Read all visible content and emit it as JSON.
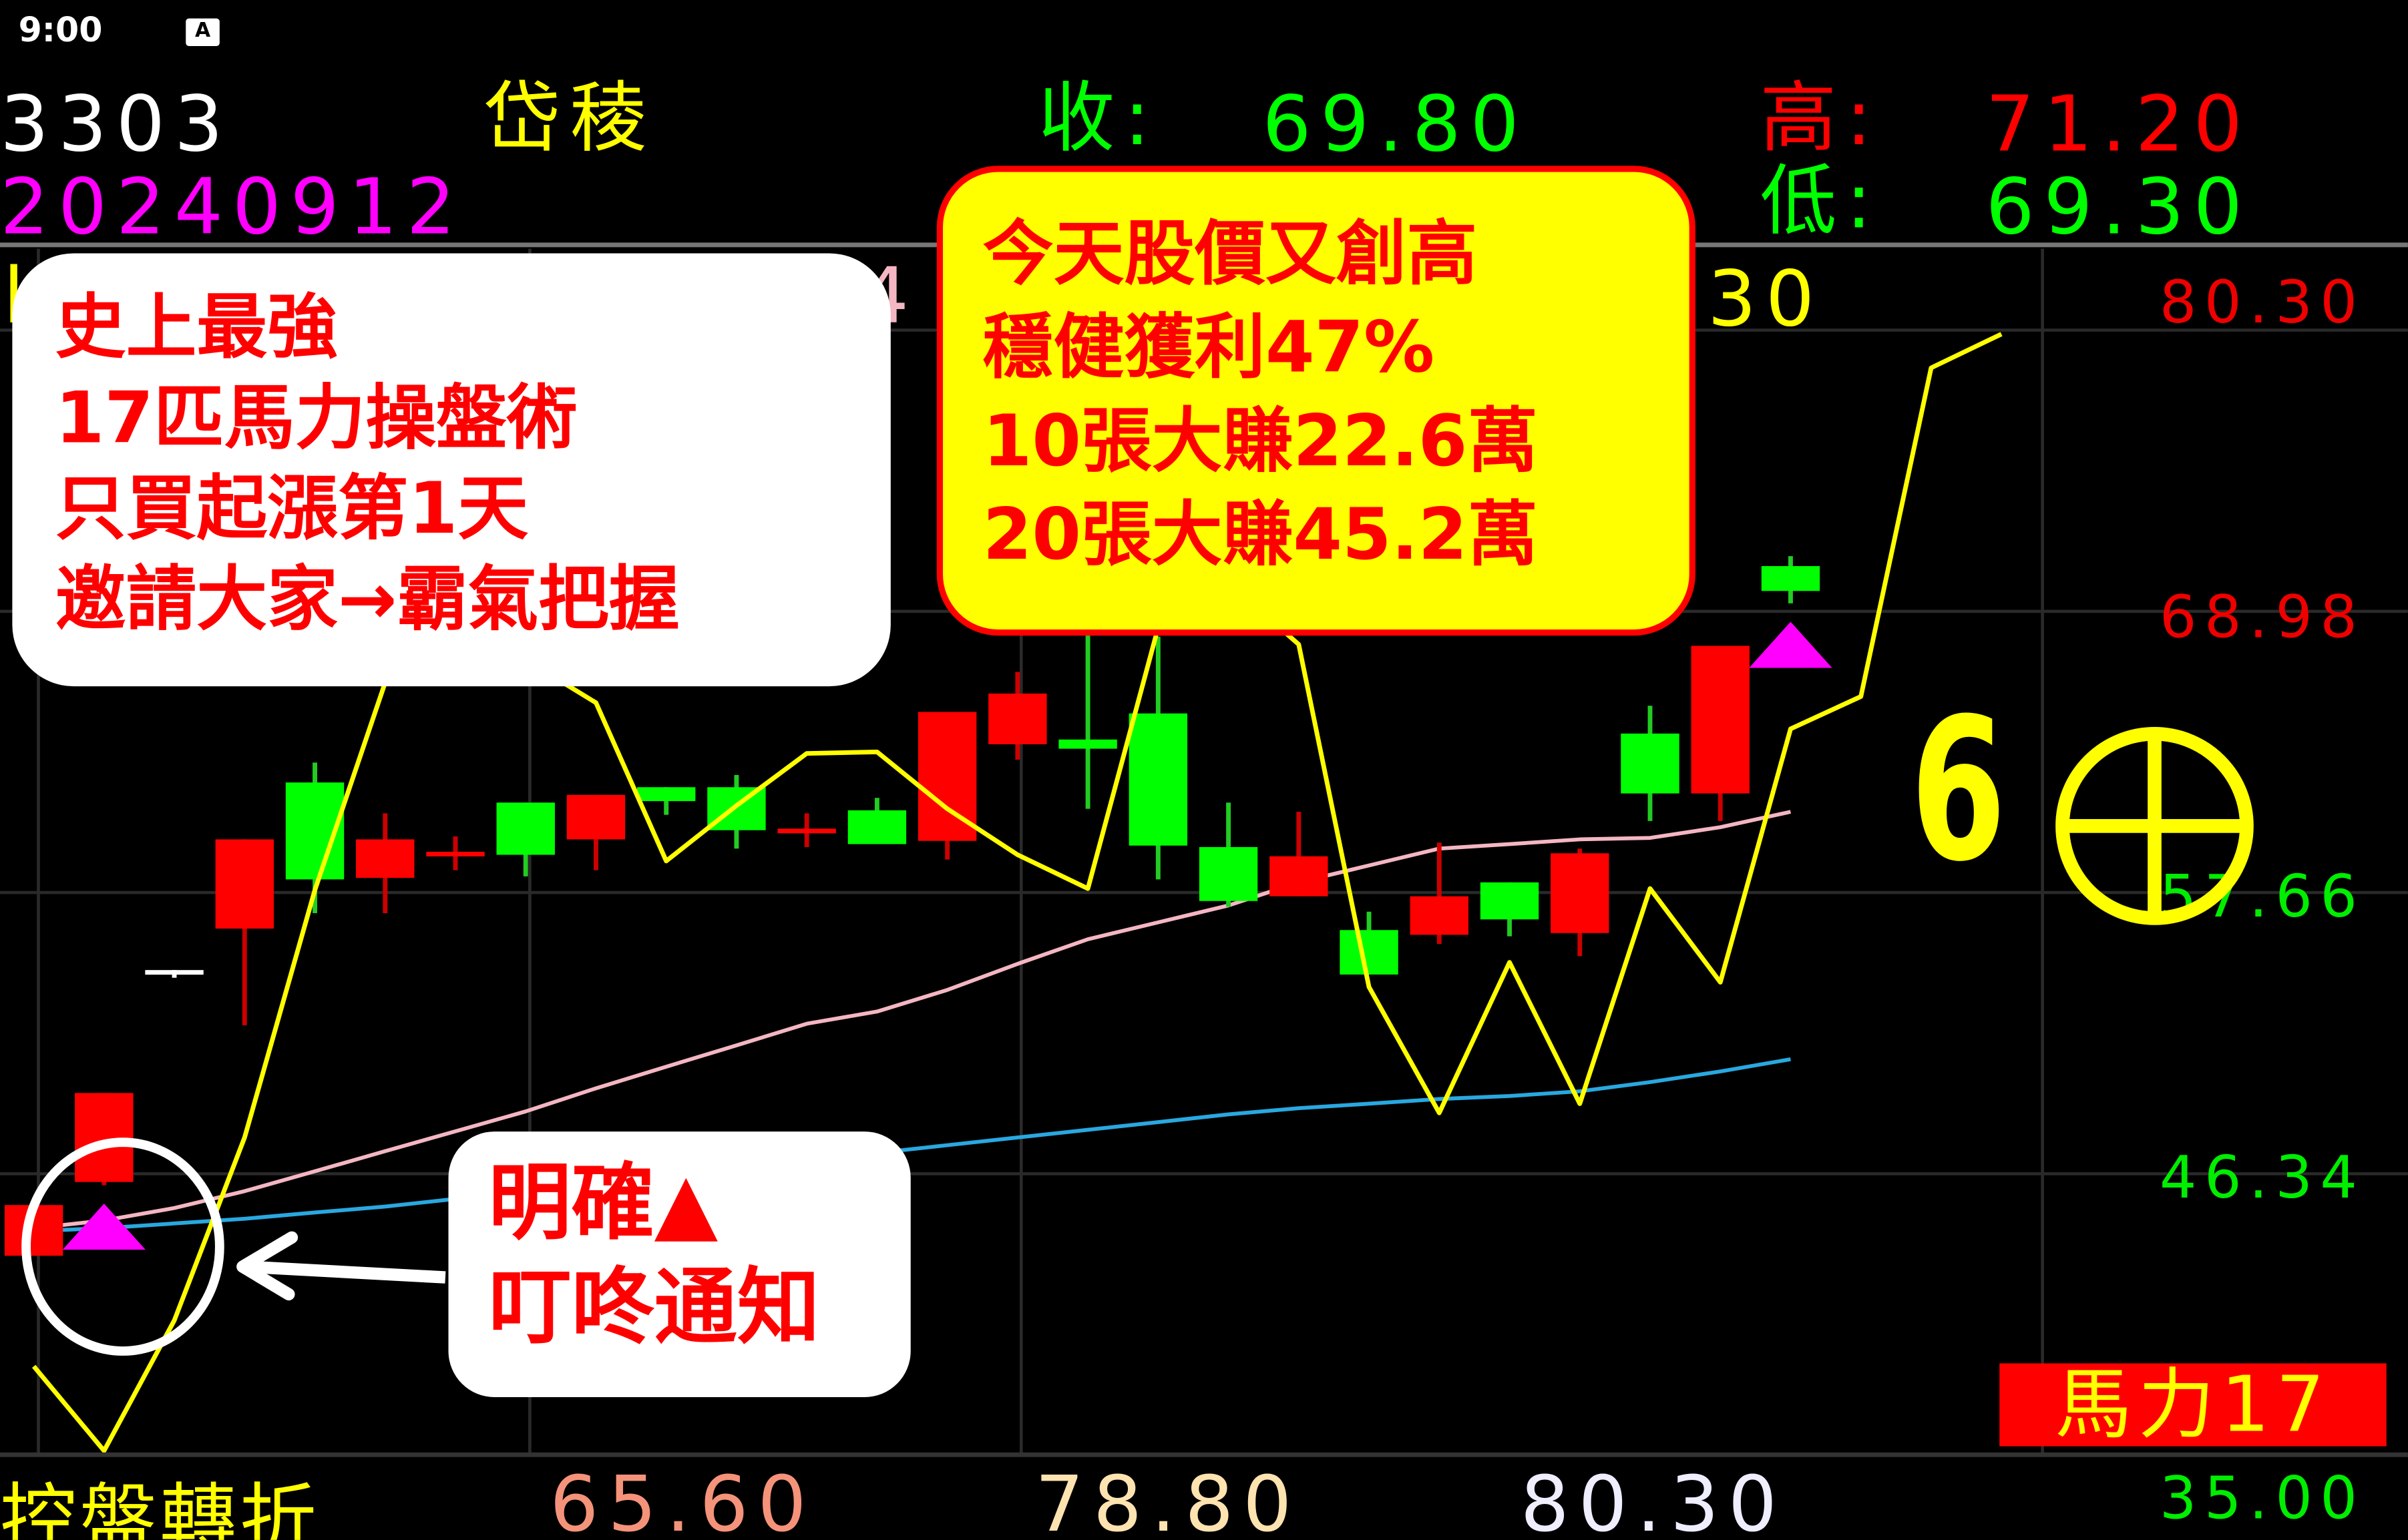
{
  "status_bar": {
    "time": "9:00",
    "icon": "A"
  },
  "header": {
    "code": "3303",
    "name": "岱稜",
    "date": "20240912",
    "close_label": "收:",
    "close_value": "69.80",
    "high_label": "高:",
    "high_value": "71.20",
    "low_label": "低:",
    "low_value": "69.30"
  },
  "ma_legend_fragments": {
    "left": "l",
    "middle": "4",
    "right": ".30"
  },
  "axis_labels": [
    "80.30",
    "68.98",
    "57.66",
    "46.34",
    "35.00"
  ],
  "callout_main": {
    "lines": [
      "史上最強",
      "17匹馬力操盤術",
      "只買起漲第1天",
      "邀請大家→霸氣把握"
    ]
  },
  "callout_profit": {
    "lines": [
      "今天股價又創高",
      "穩健獲利47%",
      "10張大賺22.6萬",
      "20張大賺45.2萬"
    ]
  },
  "callout_signal": {
    "lines": [
      "明確▲",
      "叮咚通知"
    ]
  },
  "badge": {
    "number": "6",
    "icon": "circle-cross-icon"
  },
  "horsepower_label": "馬力17",
  "footer": {
    "title": "控盤轉折",
    "values": [
      "65.60",
      "78.80",
      "80.30"
    ]
  },
  "colors": {
    "up": "#ff0000",
    "down": "#00ff00",
    "indicator": "#ffff00",
    "ma_mid": "#f4b6c2",
    "ma_long": "#29a8e0",
    "signal": "#ff00ff"
  },
  "chart_data": {
    "type": "candlestick",
    "ylim": [
      35.0,
      80.3
    ],
    "yticks": [
      80.3,
      68.98,
      57.66,
      46.34,
      35.0
    ],
    "grid": true,
    "candles": [
      {
        "o": 43.04,
        "h": 45.08,
        "l": 43.04,
        "c": 45.08
      },
      {
        "o": 46.01,
        "h": 49.59,
        "l": 45.88,
        "c": 49.59
      },
      {
        "o": 54.54,
        "h": 54.54,
        "l": 54.23,
        "c": 54.54,
        "neutral": true
      },
      {
        "o": 56.21,
        "h": 59.8,
        "l": 52.32,
        "c": 59.8
      },
      {
        "o": 62.09,
        "h": 62.89,
        "l": 56.83,
        "c": 58.19
      },
      {
        "o": 58.25,
        "h": 60.85,
        "l": 56.83,
        "c": 59.8
      },
      {
        "o": 59.3,
        "h": 59.92,
        "l": 58.56,
        "c": 59.3
      },
      {
        "o": 61.28,
        "h": 61.28,
        "l": 58.31,
        "c": 59.18
      },
      {
        "o": 59.8,
        "h": 61.59,
        "l": 58.56,
        "c": 61.59
      },
      {
        "o": 61.9,
        "h": 61.9,
        "l": 60.79,
        "c": 61.34
      },
      {
        "o": 61.9,
        "h": 62.39,
        "l": 59.43,
        "c": 60.17
      },
      {
        "o": 60.23,
        "h": 60.85,
        "l": 59.49,
        "c": 60.23
      },
      {
        "o": 60.97,
        "h": 61.47,
        "l": 59.61,
        "c": 59.61
      },
      {
        "o": 59.74,
        "h": 64.93,
        "l": 58.99,
        "c": 64.93
      },
      {
        "o": 63.63,
        "h": 66.54,
        "l": 63.01,
        "c": 65.67
      },
      {
        "o": 63.82,
        "h": 68.27,
        "l": 61.03,
        "c": 63.45
      },
      {
        "o": 64.87,
        "h": 67.96,
        "l": 58.19,
        "c": 59.55
      },
      {
        "o": 59.49,
        "h": 61.28,
        "l": 57.08,
        "c": 57.32
      },
      {
        "o": 57.51,
        "h": 60.91,
        "l": 57.51,
        "c": 59.12
      },
      {
        "o": 56.15,
        "h": 56.89,
        "l": 54.36,
        "c": 54.36
      },
      {
        "o": 55.96,
        "h": 59.67,
        "l": 55.59,
        "c": 57.51
      },
      {
        "o": 58.07,
        "h": 58.07,
        "l": 55.9,
        "c": 56.58
      },
      {
        "o": 56.03,
        "h": 59.43,
        "l": 55.1,
        "c": 59.24
      },
      {
        "o": 64.06,
        "h": 65.18,
        "l": 60.54,
        "c": 61.65
      },
      {
        "o": 61.65,
        "h": 67.59,
        "l": 60.54,
        "c": 67.59
      },
      {
        "o": 70.8,
        "h": 71.2,
        "l": 69.3,
        "c": 69.8
      }
    ],
    "series": [
      {
        "color": "#ffff00",
        "values": [
          38.59,
          35.19,
          40.44,
          47.8,
          57.76,
          66.11,
          68.27,
          67.03,
          65.3,
          58.93,
          61.16,
          63.26,
          63.32,
          61.03,
          59.18,
          57.82,
          68.33,
          70.13,
          67.65,
          53.86,
          48.79,
          54.85,
          49.16,
          57.82,
          54.05,
          64.25,
          65.55,
          78.78,
          80.14
        ]
      },
      {
        "color": "#f4b6c2",
        "values": [
          44.15,
          44.46,
          44.96,
          45.64,
          46.44,
          47.25,
          48.05,
          48.85,
          49.78,
          50.65,
          51.51,
          52.38,
          52.87,
          53.74,
          54.79,
          55.78,
          56.46,
          57.14,
          58.07,
          58.75,
          59.43,
          59.61,
          59.8,
          59.86,
          60.29,
          60.91
        ]
      },
      {
        "color": "#29a8e0",
        "values": [
          44.03,
          44.15,
          44.34,
          44.53,
          44.78,
          45.02,
          45.33,
          45.64,
          45.95,
          46.26,
          46.56,
          46.87,
          47.18,
          47.49,
          47.8,
          48.11,
          48.42,
          48.73,
          48.98,
          49.16,
          49.35,
          49.47,
          49.66,
          50.03,
          50.46,
          50.95
        ]
      }
    ],
    "buy_signals": [
      1,
      25
    ]
  }
}
